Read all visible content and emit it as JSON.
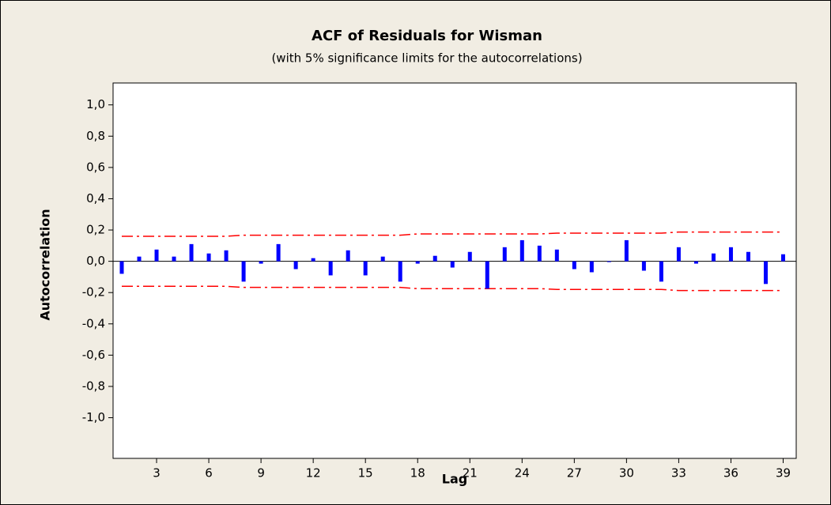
{
  "chart_data": {
    "type": "acf",
    "title": "ACF of Residuals for Wisman",
    "subtitle": "(with 5% significance limits for the autocorrelations)",
    "x_label": "Lag",
    "y_label": "Autocorrelation",
    "x": [
      1,
      2,
      3,
      4,
      5,
      6,
      7,
      8,
      9,
      10,
      11,
      12,
      13,
      14,
      15,
      16,
      17,
      18,
      19,
      20,
      21,
      22,
      23,
      24,
      25,
      26,
      27,
      28,
      29,
      30,
      31,
      32,
      33,
      34,
      35,
      36,
      37,
      38,
      39
    ],
    "values": [
      -0.08,
      0.03,
      0.075,
      0.03,
      0.11,
      0.05,
      0.07,
      -0.13,
      -0.015,
      0.11,
      -0.05,
      0.02,
      -0.09,
      0.07,
      -0.09,
      0.03,
      -0.13,
      -0.015,
      0.035,
      -0.04,
      0.06,
      -0.175,
      0.09,
      0.135,
      0.1,
      0.075,
      -0.05,
      -0.07,
      -0.005,
      0.135,
      -0.06,
      -0.13,
      0.09,
      -0.015,
      0.05,
      0.09,
      0.06,
      -0.145,
      0.045
    ],
    "color": "#0000ff",
    "upper_limits": [
      0.16,
      0.16,
      0.16,
      0.16,
      0.16,
      0.16,
      0.16,
      0.167,
      0.167,
      0.167,
      0.167,
      0.167,
      0.167,
      0.167,
      0.167,
      0.167,
      0.167,
      0.175,
      0.175,
      0.175,
      0.175,
      0.175,
      0.175,
      0.175,
      0.175,
      0.18,
      0.18,
      0.18,
      0.18,
      0.18,
      0.18,
      0.18,
      0.187,
      0.187,
      0.187,
      0.187,
      0.187,
      0.187,
      0.187
    ],
    "lower_limits": [
      -0.16,
      -0.16,
      -0.16,
      -0.16,
      -0.16,
      -0.16,
      -0.16,
      -0.167,
      -0.167,
      -0.167,
      -0.167,
      -0.167,
      -0.167,
      -0.167,
      -0.167,
      -0.167,
      -0.167,
      -0.175,
      -0.175,
      -0.175,
      -0.175,
      -0.175,
      -0.175,
      -0.175,
      -0.175,
      -0.18,
      -0.18,
      -0.18,
      -0.18,
      -0.18,
      -0.18,
      -0.18,
      -0.187,
      -0.187,
      -0.187,
      -0.187,
      -0.187,
      -0.187,
      -0.187
    ],
    "limit_color": "#ff0000",
    "xlim": [
      0.5,
      39.75
    ],
    "ylim": [
      -1.26,
      1.14
    ],
    "xticks": [
      3,
      6,
      9,
      12,
      15,
      18,
      21,
      24,
      27,
      30,
      33,
      36,
      39
    ],
    "yticks": [
      {
        "value": -1,
        "label": "-1,0"
      },
      {
        "value": -0.8,
        "label": "-0,8"
      },
      {
        "value": -0.6,
        "label": "-0,6"
      },
      {
        "value": -0.4,
        "label": "-0,4"
      },
      {
        "value": -0.2,
        "label": "-0,2"
      },
      {
        "value": 0,
        "label": "0,0"
      },
      {
        "value": 0.2,
        "label": "0,2"
      },
      {
        "value": 0.4,
        "label": "0,4"
      },
      {
        "value": 0.6,
        "label": "0,6"
      },
      {
        "value": 0.8,
        "label": "0,8"
      },
      {
        "value": 1,
        "label": "1,0"
      }
    ]
  }
}
